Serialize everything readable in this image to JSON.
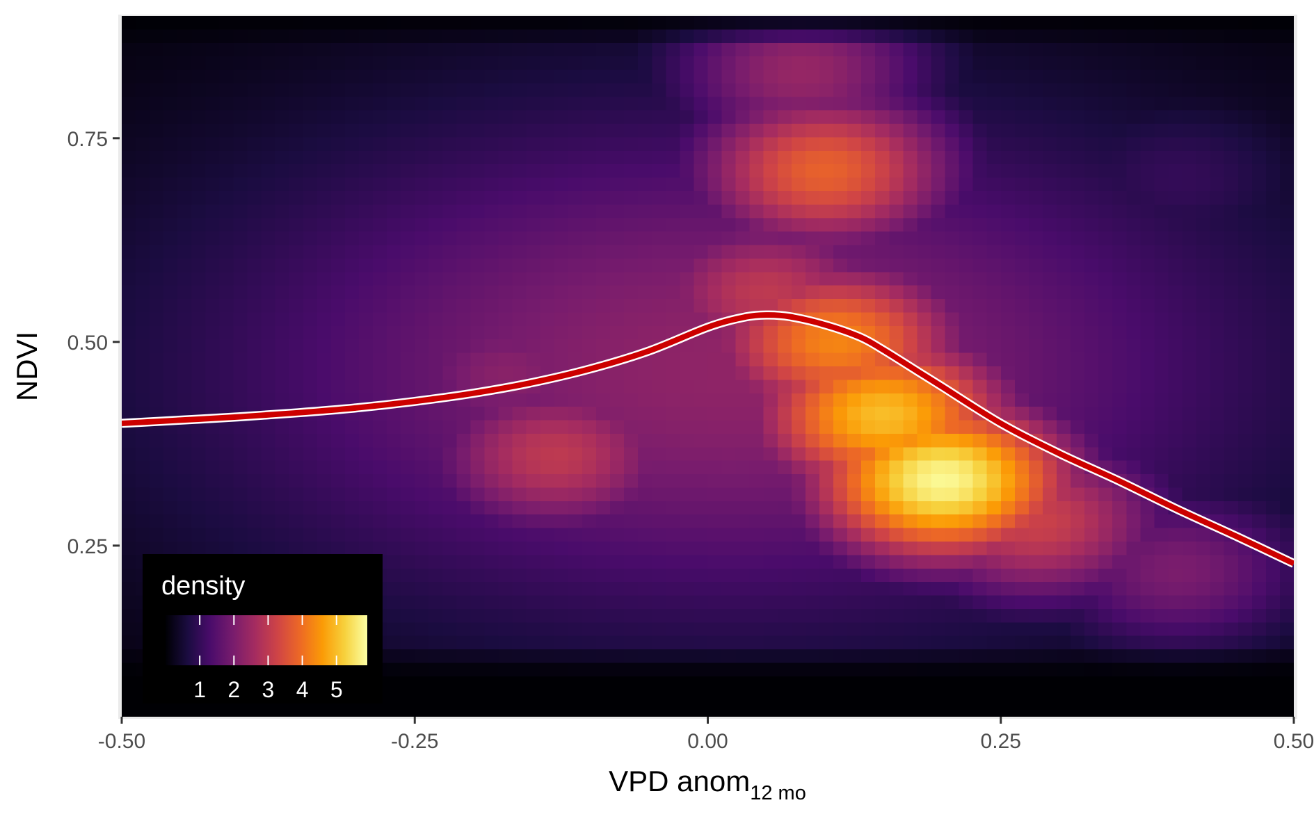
{
  "chart_data": {
    "type": "heatmap",
    "subtype": "2d-density with smoothed trend line",
    "xlabel": "VPD anom",
    "xlabel_subscript": "12 mo",
    "ylabel": "NDVI",
    "xlim": [
      -0.5,
      0.5
    ],
    "ylim": [
      0.04,
      0.9
    ],
    "x_ticks": [
      -0.5,
      -0.25,
      0.0,
      0.25,
      0.5
    ],
    "x_tick_labels": [
      "-0.50",
      "-0.25",
      "0.00",
      "0.25",
      "0.50"
    ],
    "y_ticks": [
      0.25,
      0.5,
      0.75
    ],
    "y_tick_labels": [
      "0.25",
      "0.50",
      "0.75"
    ],
    "colorscale": "inferno",
    "colorscale_stops": [
      "#000004",
      "#1b0c41",
      "#4a0c6b",
      "#781c6d",
      "#a52c60",
      "#cf4446",
      "#ed6925",
      "#fb9b06",
      "#f7d13d",
      "#fcffa4"
    ],
    "density_range": [
      0,
      5.9
    ],
    "density_hotspots": [
      {
        "x": 0.2,
        "y": 0.33,
        "density": 5.8
      },
      {
        "x": 0.15,
        "y": 0.41,
        "density": 5.0
      },
      {
        "x": 0.11,
        "y": 0.5,
        "density": 4.3
      },
      {
        "x": 0.1,
        "y": 0.71,
        "density": 3.8
      },
      {
        "x": 0.05,
        "y": 0.56,
        "density": 3.0
      },
      {
        "x": -0.13,
        "y": 0.36,
        "density": 3.0
      },
      {
        "x": 0.28,
        "y": 0.28,
        "density": 3.2
      },
      {
        "x": -0.17,
        "y": 0.46,
        "density": 2.2
      },
      {
        "x": 0.08,
        "y": 0.83,
        "density": 2.4
      },
      {
        "x": 0.4,
        "y": 0.22,
        "density": 2.0
      },
      {
        "x": -0.3,
        "y": 0.44,
        "density": 1.4
      },
      {
        "x": 0.4,
        "y": 0.7,
        "density": 1.0
      }
    ],
    "trend_line": {
      "color": "#cc0000",
      "outline": "#ffffff",
      "x": [
        -0.5,
        -0.45,
        -0.4,
        -0.35,
        -0.3,
        -0.25,
        -0.2,
        -0.15,
        -0.1,
        -0.05,
        0.0,
        0.03,
        0.05,
        0.07,
        0.1,
        0.13,
        0.15,
        0.18,
        0.2,
        0.25,
        0.3,
        0.35,
        0.4,
        0.45,
        0.5
      ],
      "y": [
        0.4,
        0.404,
        0.408,
        0.413,
        0.419,
        0.427,
        0.437,
        0.45,
        0.467,
        0.489,
        0.518,
        0.53,
        0.533,
        0.531,
        0.521,
        0.506,
        0.49,
        0.463,
        0.445,
        0.4,
        0.363,
        0.33,
        0.295,
        0.262,
        0.228
      ]
    },
    "legend": {
      "title": "density",
      "placement": "bottom-left inside panel",
      "breaks": [
        1,
        2,
        3,
        4,
        5
      ],
      "labels": [
        "1",
        "2",
        "3",
        "4",
        "5"
      ]
    },
    "grid": true,
    "panel_background": "#000004",
    "background": "#ffffff"
  }
}
